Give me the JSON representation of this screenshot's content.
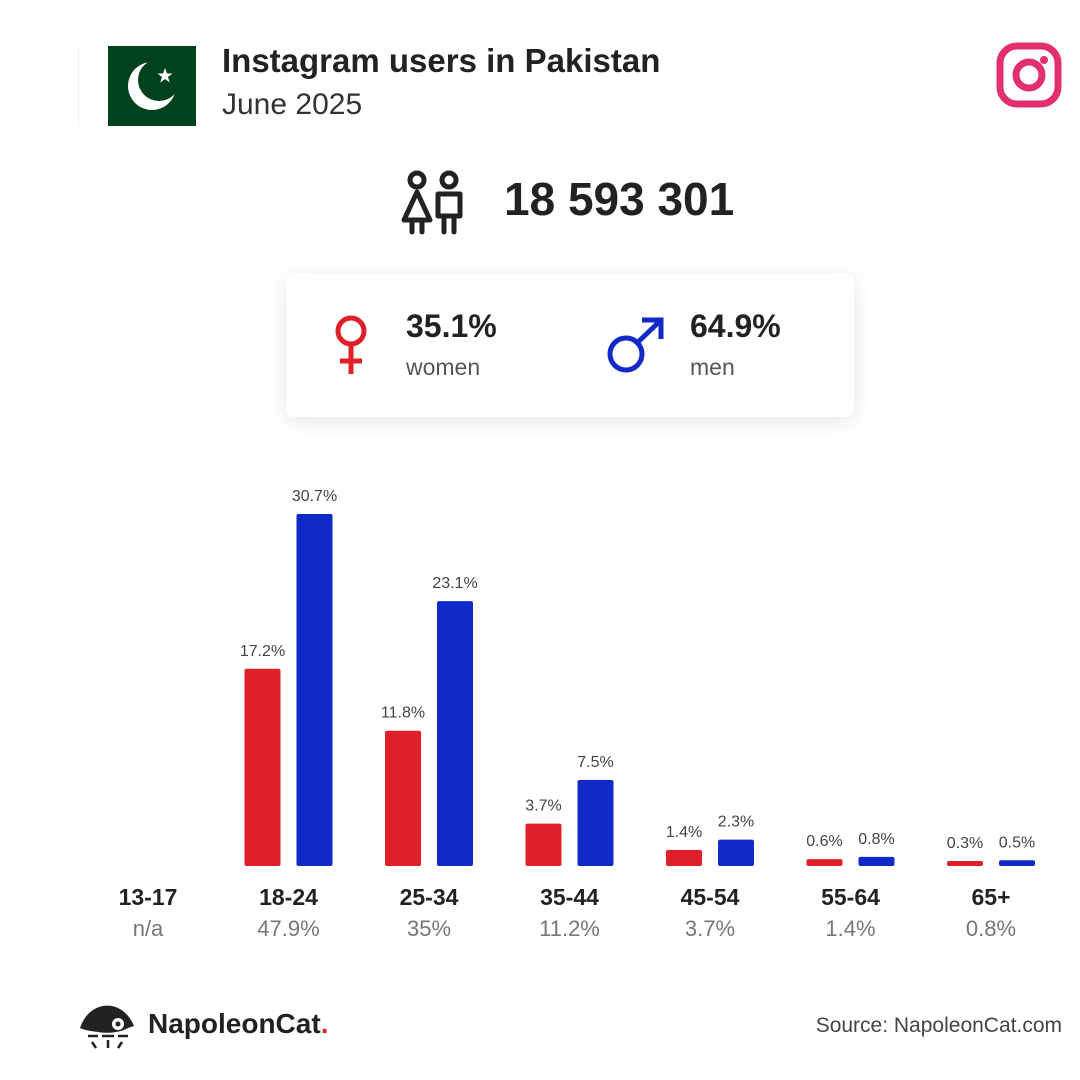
{
  "header": {
    "title": "Instagram users in Pakistan",
    "subtitle": "June 2025",
    "flag_icon": "pakistan-flag-icon",
    "platform_icon": "instagram-icon"
  },
  "total": {
    "icon": "users-icon",
    "value": "18 593 301"
  },
  "gender": {
    "women": {
      "pct": "35.1%",
      "label": "women",
      "icon": "female-symbol-icon"
    },
    "men": {
      "pct": "64.9%",
      "label": "men",
      "icon": "male-symbol-icon"
    }
  },
  "colors": {
    "women": "#df2029",
    "men": "#1129c6",
    "instagram": "#e1306c",
    "flag_green": "#01411c"
  },
  "chart_data": {
    "type": "bar",
    "categories": [
      "13-17",
      "18-24",
      "25-34",
      "35-44",
      "45-54",
      "55-64",
      "65+"
    ],
    "category_totals": [
      "n/a",
      "47.9%",
      "35%",
      "11.2%",
      "3.7%",
      "1.4%",
      "0.8%"
    ],
    "series": [
      {
        "name": "women",
        "values": [
          null,
          17.2,
          11.8,
          3.7,
          1.4,
          0.6,
          0.3
        ],
        "labels": [
          "",
          "17.2%",
          "11.8%",
          "3.7%",
          "1.4%",
          "0.6%",
          "0.3%"
        ]
      },
      {
        "name": "men",
        "values": [
          null,
          30.7,
          23.1,
          7.5,
          2.3,
          0.8,
          0.5
        ],
        "labels": [
          "",
          "30.7%",
          "23.1%",
          "7.5%",
          "2.3%",
          "0.8%",
          "0.5%"
        ]
      }
    ],
    "ylim": [
      0,
      30.7
    ],
    "title": "",
    "xlabel": "",
    "ylabel": "",
    "grid": false,
    "legend": "none"
  },
  "footer": {
    "brand": "NapoleonCat",
    "brand_dot": ".",
    "brand_icon": "napoleoncat-logo-icon",
    "source": "Source: NapoleonCat.com"
  }
}
